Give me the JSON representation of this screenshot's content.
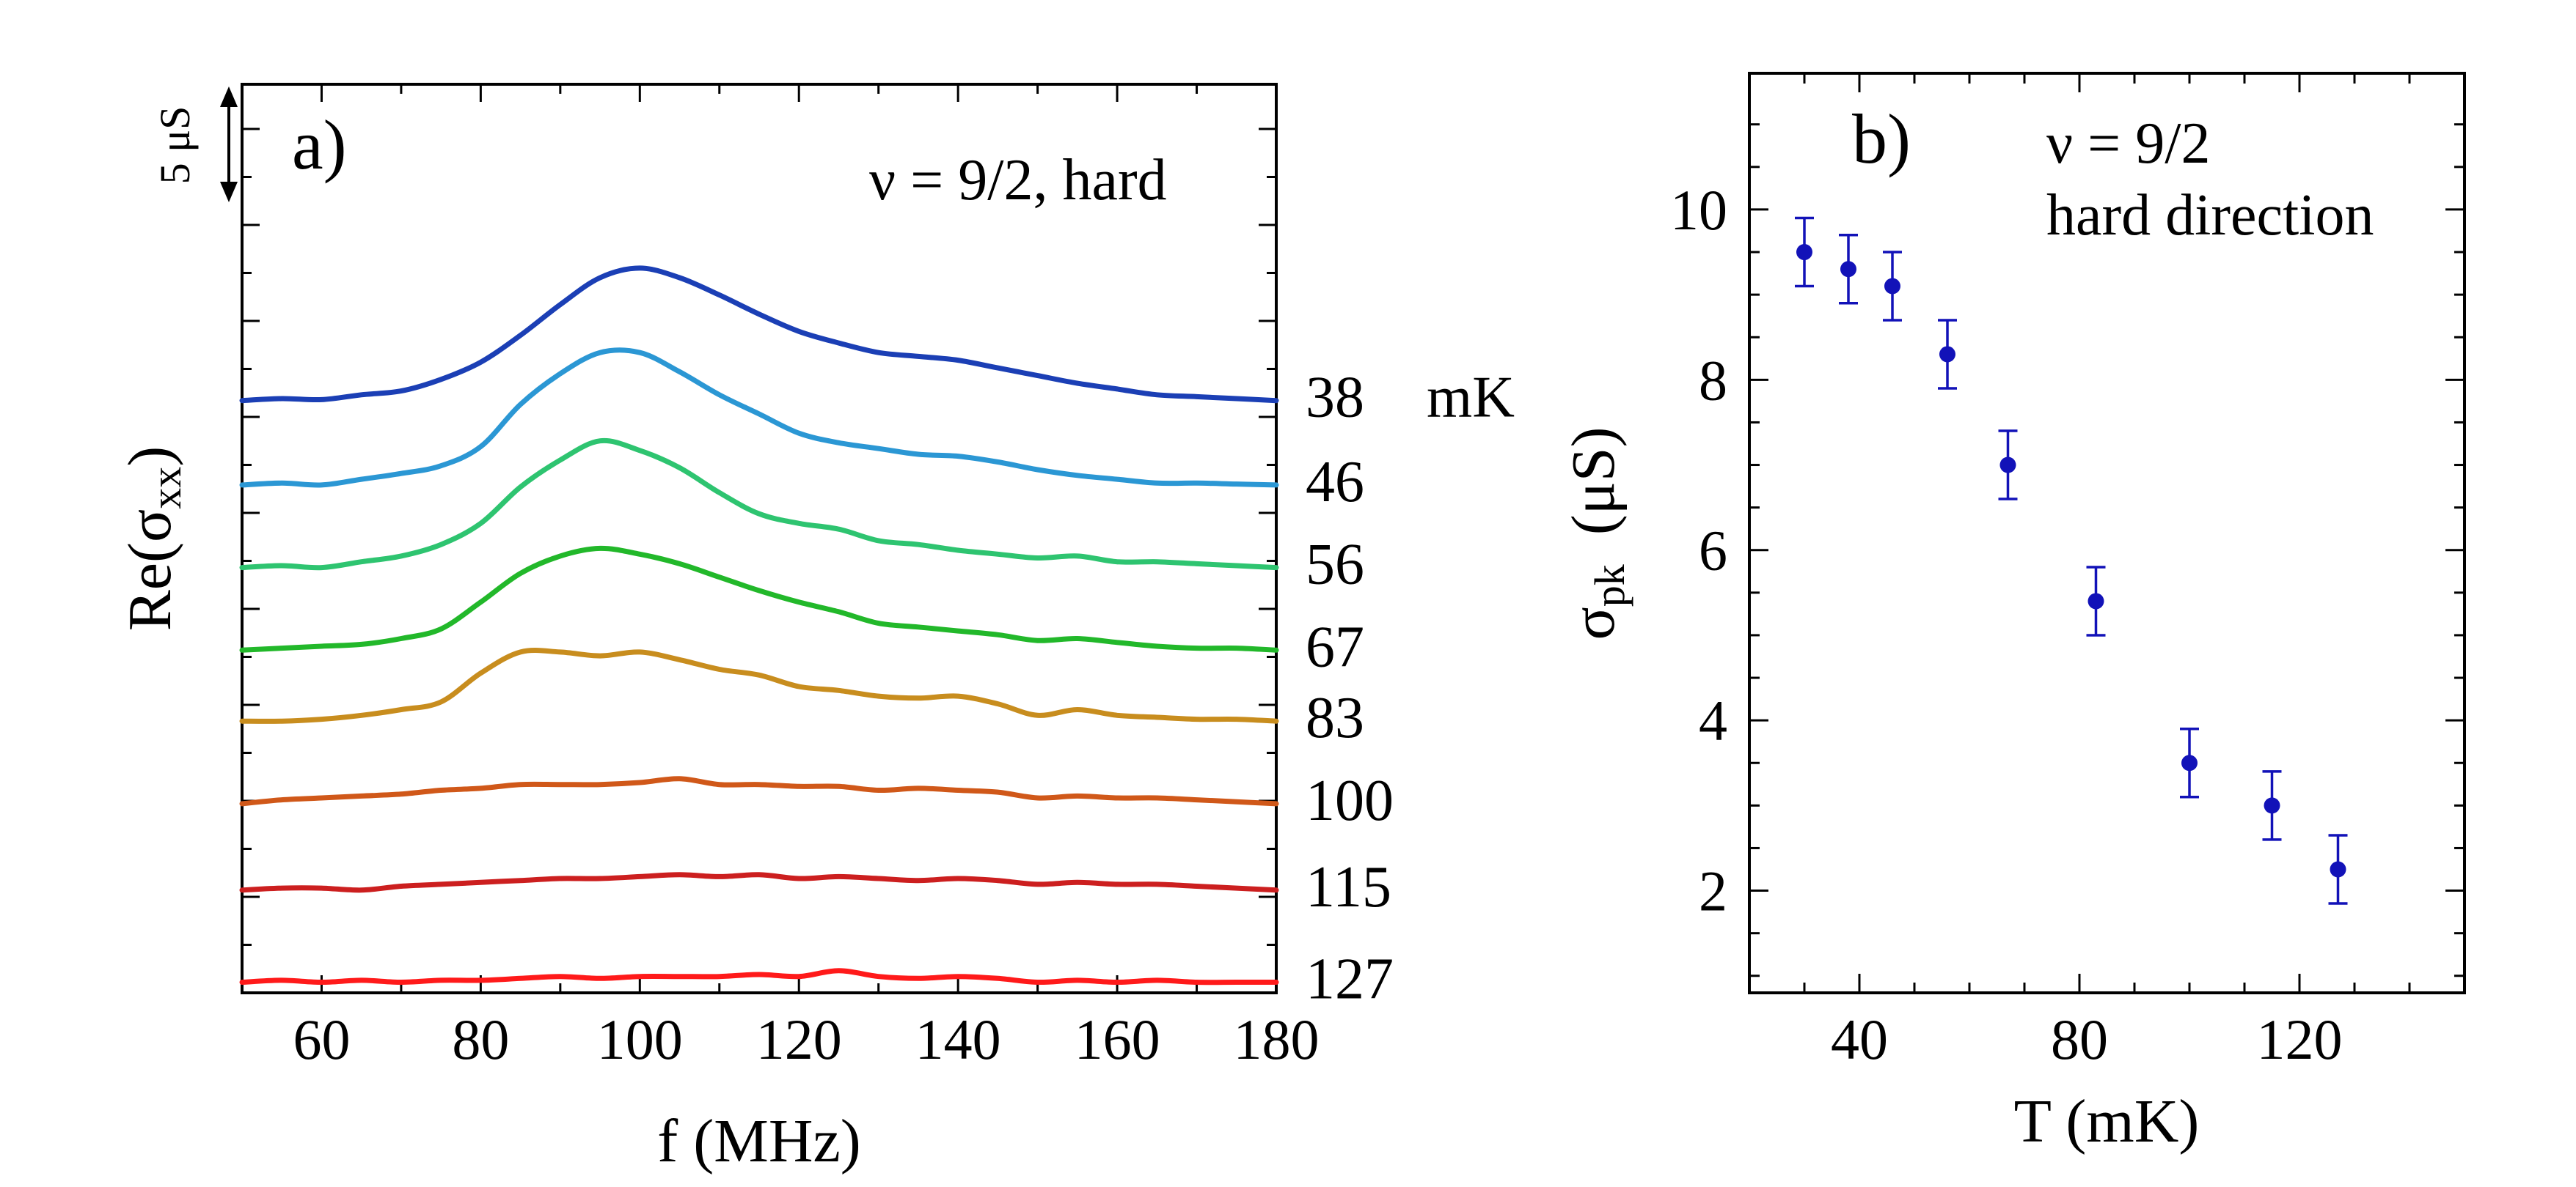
{
  "chart_data": [
    {
      "type": "line",
      "panel_label": "a)",
      "annotation": "ν  = 9/2, hard",
      "xlabel": "f (MHz)",
      "ylabel_main": "Re(σ",
      "ylabel_sub": "xx",
      "ylabel_close": ")",
      "xlim": [
        50,
        180
      ],
      "x_ticks": [
        60,
        80,
        100,
        120,
        140,
        160,
        180
      ],
      "scale_bar": {
        "label": "5 μS",
        "value_uS": 5
      },
      "curve_unit": "mK",
      "x": [
        50,
        55,
        60,
        65,
        70,
        75,
        80,
        85,
        90,
        95,
        100,
        105,
        110,
        115,
        120,
        125,
        130,
        135,
        140,
        145,
        150,
        155,
        160,
        165,
        170,
        175,
        180
      ],
      "series": [
        {
          "name": "38",
          "color": "#1b3fb5",
          "baseline_uS": 30.7,
          "values": [
            0,
            0.1,
            0.05,
            0.3,
            0.5,
            1.1,
            2.0,
            3.4,
            5.0,
            6.4,
            6.9,
            6.4,
            5.5,
            4.5,
            3.6,
            3.0,
            2.5,
            2.3,
            2.1,
            1.7,
            1.3,
            0.9,
            0.6,
            0.3,
            0.2,
            0.1,
            0
          ]
        },
        {
          "name": "46",
          "color": "#2b97d4",
          "baseline_uS": 26.3,
          "values": [
            0,
            0.1,
            0.0,
            0.3,
            0.6,
            1.0,
            2.0,
            4.2,
            5.8,
            6.9,
            6.9,
            5.9,
            4.7,
            3.7,
            2.7,
            2.2,
            1.9,
            1.6,
            1.5,
            1.2,
            0.8,
            0.5,
            0.3,
            0.1,
            0.1,
            0.05,
            0
          ]
        },
        {
          "name": "56",
          "color": "#2ec470",
          "baseline_uS": 22.0,
          "values": [
            0,
            0.1,
            0.0,
            0.3,
            0.6,
            1.2,
            2.3,
            4.2,
            5.6,
            6.6,
            6.1,
            5.2,
            3.9,
            2.8,
            2.3,
            2.0,
            1.4,
            1.2,
            0.9,
            0.7,
            0.5,
            0.6,
            0.3,
            0.3,
            0.2,
            0.1,
            0
          ]
        },
        {
          "name": "67",
          "color": "#22b82a",
          "baseline_uS": 17.7,
          "values": [
            0,
            0.1,
            0.2,
            0.3,
            0.6,
            1.1,
            2.5,
            4.0,
            4.9,
            5.3,
            5.0,
            4.5,
            3.8,
            3.1,
            2.5,
            2.0,
            1.4,
            1.2,
            1.0,
            0.8,
            0.5,
            0.6,
            0.4,
            0.2,
            0.1,
            0.1,
            0
          ]
        },
        {
          "name": "83",
          "color": "#c88d1e",
          "baseline_uS": 14.0,
          "values": [
            0,
            0.0,
            0.1,
            0.3,
            0.6,
            1.0,
            2.5,
            3.6,
            3.6,
            3.4,
            3.6,
            3.2,
            2.7,
            2.4,
            1.8,
            1.6,
            1.3,
            1.2,
            1.3,
            0.9,
            0.3,
            0.6,
            0.3,
            0.2,
            0.1,
            0.1,
            0
          ]
        },
        {
          "name": "100",
          "color": "#d05819",
          "baseline_uS": 9.7,
          "values": [
            0,
            0.2,
            0.3,
            0.4,
            0.5,
            0.7,
            0.8,
            1.0,
            1.0,
            1.0,
            1.1,
            1.3,
            1.0,
            1.0,
            0.9,
            0.9,
            0.7,
            0.8,
            0.7,
            0.6,
            0.3,
            0.4,
            0.3,
            0.3,
            0.2,
            0.1,
            0
          ]
        },
        {
          "name": "115",
          "color": "#cc1f1f",
          "baseline_uS": 5.2,
          "values": [
            0,
            0.1,
            0.1,
            0.0,
            0.2,
            0.3,
            0.4,
            0.5,
            0.6,
            0.6,
            0.7,
            0.8,
            0.7,
            0.8,
            0.6,
            0.7,
            0.6,
            0.5,
            0.6,
            0.5,
            0.3,
            0.4,
            0.3,
            0.3,
            0.2,
            0.1,
            0
          ]
        },
        {
          "name": "127",
          "color": "#ff1a1a",
          "baseline_uS": 0.4,
          "values": [
            0,
            0.1,
            0.0,
            0.1,
            0.0,
            0.1,
            0.1,
            0.2,
            0.3,
            0.2,
            0.3,
            0.3,
            0.3,
            0.4,
            0.3,
            0.6,
            0.3,
            0.2,
            0.3,
            0.2,
            0.0,
            0.1,
            0.0,
            0.1,
            0.0,
            0.0,
            0
          ]
        }
      ]
    },
    {
      "type": "scatter",
      "panel_label": "b)",
      "annotation_line1": "ν  = 9/2",
      "annotation_line2": "hard direction",
      "xlabel": "T  (mK)",
      "ylabel_main": "σ",
      "ylabel_sub": "pk",
      "ylabel_unit": "(μS)",
      "xlim": [
        20,
        150
      ],
      "ylim": [
        0.8,
        11.6
      ],
      "x_ticks": [
        40,
        80,
        120
      ],
      "y_ticks": [
        2,
        4,
        6,
        8,
        10
      ],
      "marker_color": "#1212b8",
      "points": [
        {
          "x": 30,
          "y": 9.5,
          "err": 0.4
        },
        {
          "x": 38,
          "y": 9.3,
          "err": 0.4
        },
        {
          "x": 46,
          "y": 9.1,
          "err": 0.4
        },
        {
          "x": 56,
          "y": 8.3,
          "err": 0.4
        },
        {
          "x": 67,
          "y": 7.0,
          "err": 0.4
        },
        {
          "x": 83,
          "y": 5.4,
          "err": 0.4
        },
        {
          "x": 100,
          "y": 3.5,
          "err": 0.4
        },
        {
          "x": 115,
          "y": 3.0,
          "err": 0.4
        },
        {
          "x": 127,
          "y": 2.25,
          "err": 0.4
        }
      ]
    }
  ]
}
